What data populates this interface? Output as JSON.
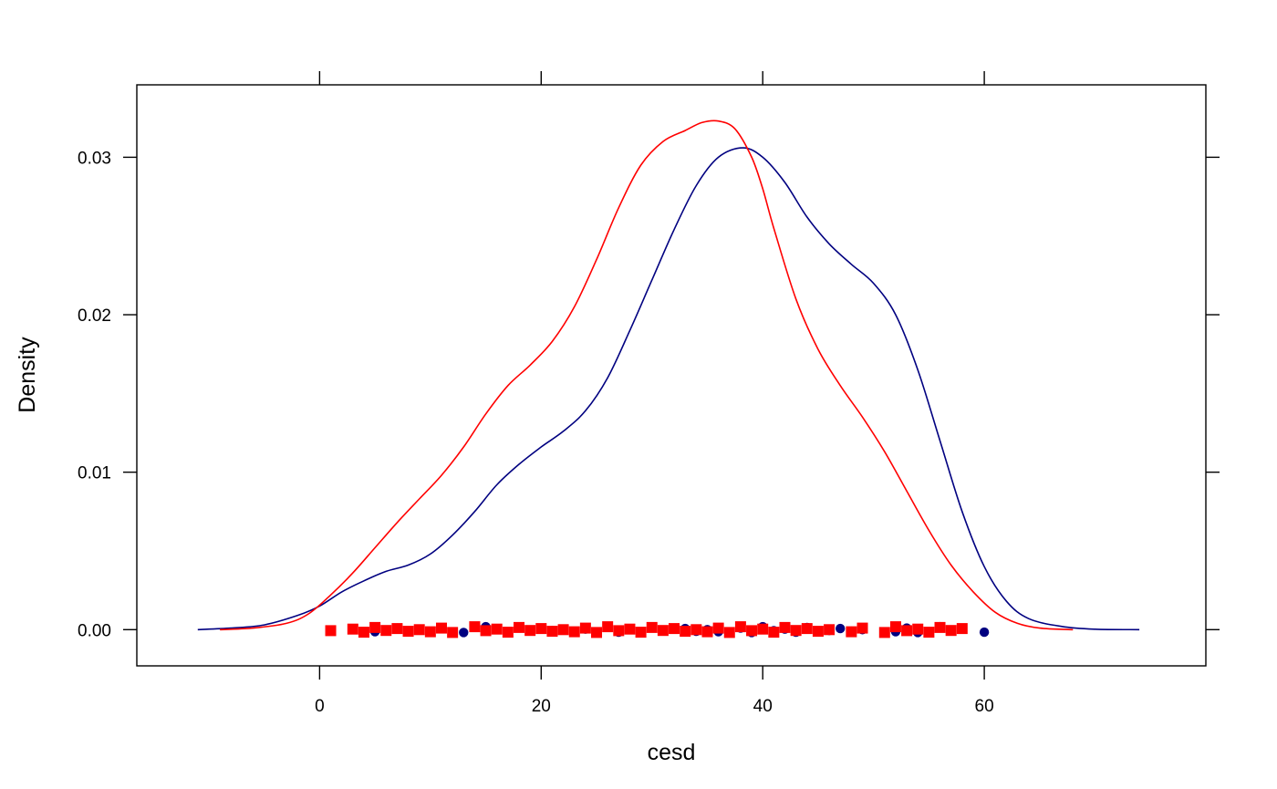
{
  "chart_data": {
    "type": "line",
    "xlabel": "cesd",
    "ylabel": "Density",
    "xlim": [
      -16.5,
      80
    ],
    "ylim": [
      -0.0023,
      0.0346
    ],
    "x_ticks": [
      0,
      20,
      40,
      60
    ],
    "x_tick_labels": [
      "0",
      "20",
      "40",
      "60"
    ],
    "y_ticks": [
      0,
      0.01,
      0.02,
      0.03
    ],
    "y_tick_labels": [
      "0.00",
      "0.01",
      "0.02",
      "0.03"
    ],
    "grid": false,
    "legend": "none",
    "series": [
      {
        "color": "#000080",
        "marker": "circle",
        "density": [
          [
            -11,
            0.0
          ],
          [
            -8,
            0.0001
          ],
          [
            -5,
            0.0003
          ],
          [
            -2,
            0.0009
          ],
          [
            0,
            0.0015
          ],
          [
            2,
            0.0024
          ],
          [
            4,
            0.0031
          ],
          [
            6,
            0.0037
          ],
          [
            8,
            0.0041
          ],
          [
            10,
            0.0048
          ],
          [
            12,
            0.006
          ],
          [
            14,
            0.0075
          ],
          [
            16,
            0.0092
          ],
          [
            18,
            0.0105
          ],
          [
            20,
            0.0116
          ],
          [
            22,
            0.0126
          ],
          [
            24,
            0.0139
          ],
          [
            26,
            0.016
          ],
          [
            28,
            0.019
          ],
          [
            30,
            0.0222
          ],
          [
            32,
            0.0254
          ],
          [
            34,
            0.0282
          ],
          [
            36,
            0.03
          ],
          [
            38.2,
            0.0306
          ],
          [
            40,
            0.03
          ],
          [
            42,
            0.0284
          ],
          [
            44,
            0.0262
          ],
          [
            46,
            0.0245
          ],
          [
            48,
            0.0232
          ],
          [
            50,
            0.022
          ],
          [
            52,
            0.02
          ],
          [
            54,
            0.0165
          ],
          [
            56,
            0.012
          ],
          [
            58,
            0.0075
          ],
          [
            60,
            0.004
          ],
          [
            62,
            0.0018
          ],
          [
            64,
            0.0007
          ],
          [
            67,
            0.0002
          ],
          [
            70,
            3e-05
          ],
          [
            74,
            0.0
          ]
        ],
        "rug_values": [
          3,
          5,
          7,
          13,
          15,
          21,
          24,
          27,
          30,
          31,
          33,
          34,
          35,
          36,
          38,
          39,
          40,
          41,
          42,
          43,
          44,
          46,
          47,
          48,
          49,
          52,
          53,
          54,
          56,
          57,
          58,
          60
        ]
      },
      {
        "color": "#ff0000",
        "marker": "square",
        "density": [
          [
            -9,
            0.0
          ],
          [
            -6,
            0.0001
          ],
          [
            -3,
            0.0004
          ],
          [
            -1,
            0.001
          ],
          [
            1,
            0.0022
          ],
          [
            3,
            0.0036
          ],
          [
            5,
            0.0052
          ],
          [
            7,
            0.0068
          ],
          [
            9,
            0.0083
          ],
          [
            11,
            0.0098
          ],
          [
            13,
            0.0116
          ],
          [
            15,
            0.0137
          ],
          [
            17,
            0.0155
          ],
          [
            19,
            0.0168
          ],
          [
            21,
            0.0183
          ],
          [
            23,
            0.0205
          ],
          [
            25,
            0.0235
          ],
          [
            27,
            0.0268
          ],
          [
            29,
            0.0295
          ],
          [
            31,
            0.031
          ],
          [
            33,
            0.0317
          ],
          [
            34.5,
            0.0322
          ],
          [
            36,
            0.0323
          ],
          [
            37.5,
            0.0318
          ],
          [
            39,
            0.03
          ],
          [
            40,
            0.028
          ],
          [
            41,
            0.0255
          ],
          [
            43,
            0.021
          ],
          [
            45,
            0.0178
          ],
          [
            47,
            0.0155
          ],
          [
            49,
            0.0135
          ],
          [
            51,
            0.0113
          ],
          [
            53,
            0.0088
          ],
          [
            55,
            0.0063
          ],
          [
            57,
            0.0041
          ],
          [
            59,
            0.0024
          ],
          [
            61,
            0.0011
          ],
          [
            63,
            0.0004
          ],
          [
            65,
            0.0001
          ],
          [
            68,
            0.0
          ]
        ],
        "rug_values": [
          1,
          3,
          4,
          5,
          6,
          7,
          8,
          9,
          10,
          11,
          12,
          14,
          15,
          16,
          17,
          18,
          19,
          20,
          21,
          22,
          23,
          24,
          25,
          26,
          27,
          28,
          29,
          30,
          31,
          32,
          33,
          34,
          35,
          36,
          37,
          38,
          39,
          40,
          41,
          42,
          43,
          44,
          45,
          46,
          48,
          49,
          51,
          52,
          53,
          54,
          55,
          56,
          57,
          58
        ]
      }
    ]
  }
}
